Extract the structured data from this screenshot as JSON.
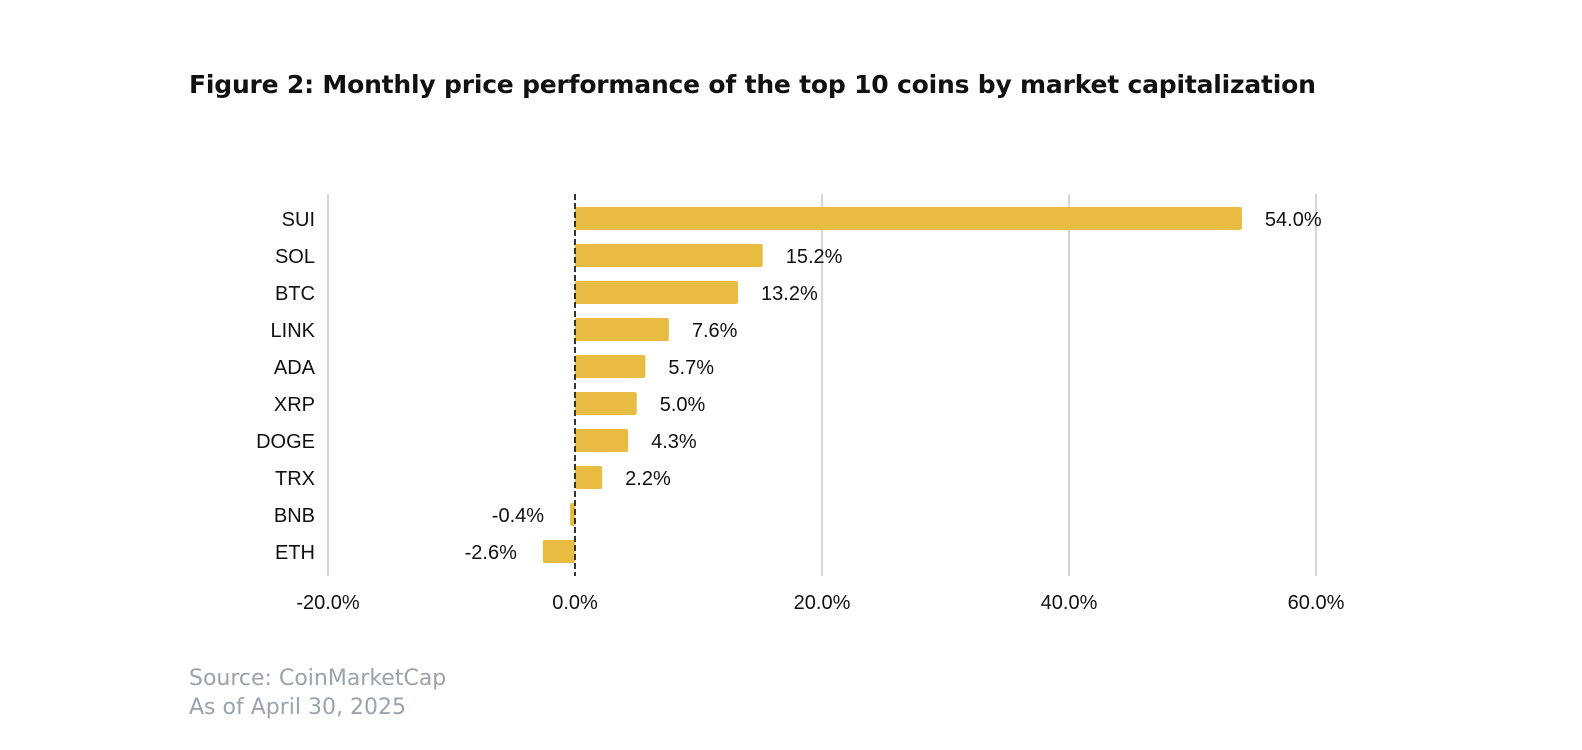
{
  "title": "Figure 2: Monthly price performance of the top 10 coins by market capitalization",
  "source": "Source: CoinMarketCap",
  "as_of": "As of April 30, 2025",
  "colors": {
    "bar": "#E8BC42",
    "grid": "#c8c8c8",
    "zero_line": "#333333",
    "text": "#111111"
  },
  "chart_data": {
    "type": "bar",
    "orientation": "horizontal",
    "categories": [
      "SUI",
      "SOL",
      "BTC",
      "LINK",
      "ADA",
      "XRP",
      "DOGE",
      "TRX",
      "BNB",
      "ETH"
    ],
    "values": [
      54.0,
      15.2,
      13.2,
      7.6,
      5.7,
      5.0,
      4.3,
      2.2,
      -0.4,
      -2.6
    ],
    "value_labels": [
      "54.0%",
      "15.2%",
      "13.2%",
      "7.6%",
      "5.7%",
      "5.0%",
      "4.3%",
      "2.2%",
      "-0.4%",
      "-2.6%"
    ],
    "xlim": [
      -20,
      60
    ],
    "xticks": [
      -20,
      0,
      20,
      40,
      60
    ],
    "xtick_labels": [
      "-20.0%",
      "0.0%",
      "20.0%",
      "40.0%",
      "60.0%"
    ],
    "grid": true,
    "zero_line_style": "dashed"
  }
}
